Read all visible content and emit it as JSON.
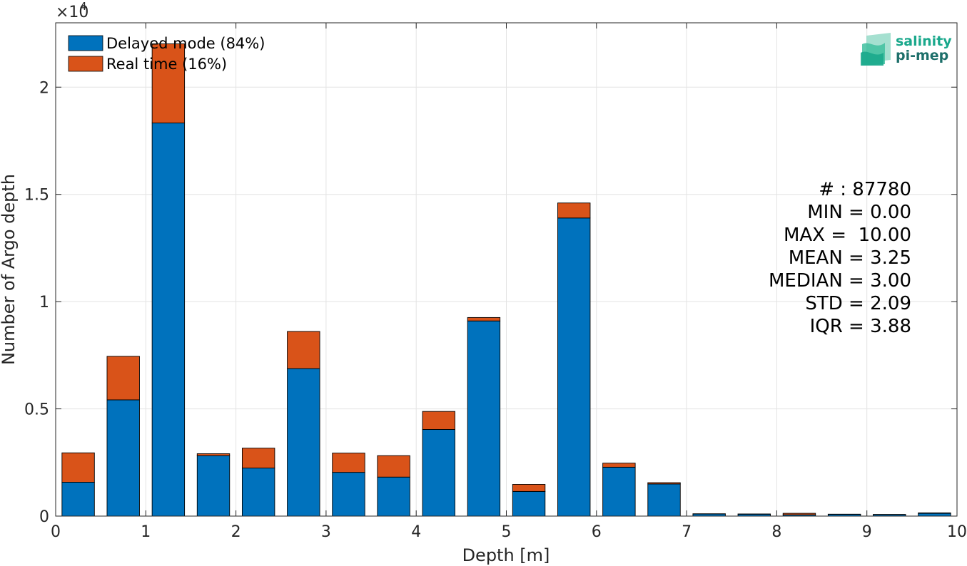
{
  "chart_data": {
    "type": "bar",
    "stacked": true,
    "xlabel": "Depth [m]",
    "ylabel": "Number of Argo depth",
    "y_exponent_label": "×10",
    "y_exponent_power": "4",
    "xlim": [
      0,
      10
    ],
    "ylim": [
      0,
      23000
    ],
    "x_ticks": [
      "0",
      "1",
      "2",
      "3",
      "4",
      "5",
      "6",
      "7",
      "8",
      "9",
      "10"
    ],
    "y_ticks": [
      {
        "value": 0,
        "label": "0"
      },
      {
        "value": 5000,
        "label": "0.5"
      },
      {
        "value": 10000,
        "label": "1"
      },
      {
        "value": 15000,
        "label": "1.5"
      },
      {
        "value": 20000,
        "label": "2"
      }
    ],
    "grid": true,
    "legend_position": "top-left",
    "bar_width": 0.36,
    "x": [
      0.25,
      0.75,
      1.25,
      1.75,
      2.25,
      2.75,
      3.25,
      3.75,
      4.25,
      4.75,
      5.25,
      5.75,
      6.25,
      6.75,
      7.25,
      7.75,
      8.25,
      8.75,
      9.25,
      9.75
    ],
    "series": [
      {
        "name": "Delayed mode (84%)",
        "color": "#0072BD",
        "values": [
          1580,
          5420,
          18330,
          2820,
          2240,
          6880,
          2040,
          1820,
          4040,
          9100,
          1150,
          13900,
          2280,
          1500,
          100,
          90,
          60,
          80,
          70,
          130
        ]
      },
      {
        "name": "Real time (16%)",
        "color": "#D95319",
        "values": [
          1370,
          2030,
          3690,
          90,
          930,
          1730,
          900,
          1000,
          840,
          160,
          330,
          700,
          190,
          60,
          10,
          10,
          70,
          10,
          10,
          20
        ]
      }
    ]
  },
  "stats": {
    "count": "# : 87780",
    "min": "MIN = 0.00",
    "max": "MAX =  10.00",
    "mean": "MEAN = 3.25",
    "median": "MEDIAN = 3.00",
    "std": "STD = 2.09",
    "iqr": "IQR = 3.88"
  },
  "logo": {
    "line1": "salinity",
    "line2": "pi-mep",
    "color1": "#1aa88c",
    "color2": "#1d6f6a"
  }
}
